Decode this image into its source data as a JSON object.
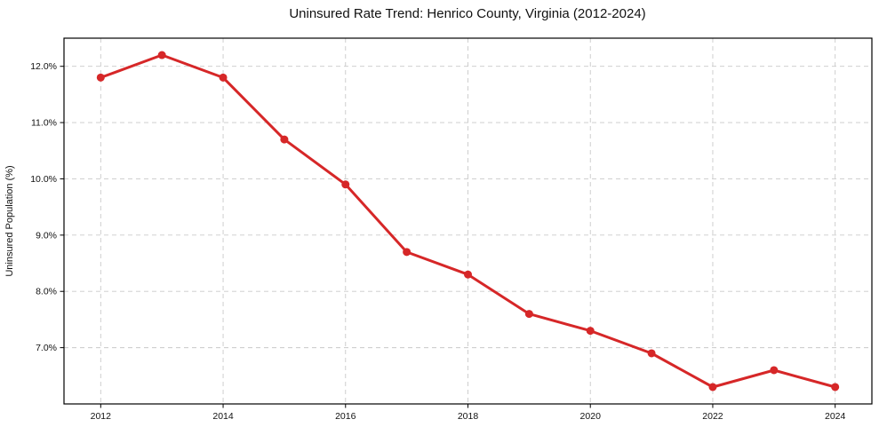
{
  "chart_data": {
    "type": "line",
    "title": "Uninsured Rate Trend: Henrico County, Virginia (2012-2024)",
    "xlabel": "",
    "ylabel": "Uninsured Population (%)",
    "series_name": "uninsured-rate",
    "x": [
      2012,
      2013,
      2014,
      2015,
      2016,
      2017,
      2018,
      2019,
      2020,
      2021,
      2022,
      2023,
      2024
    ],
    "values": [
      11.8,
      12.2,
      11.8,
      10.7,
      9.9,
      8.7,
      8.3,
      7.6,
      7.3,
      6.9,
      6.3,
      6.6,
      6.3
    ],
    "xlim": [
      2011.4,
      2024.6
    ],
    "ylim": [
      6.0,
      12.5
    ],
    "xticks": [
      2012,
      2014,
      2016,
      2018,
      2020,
      2022,
      2024
    ],
    "xtick_labels": [
      "2012",
      "2014",
      "2016",
      "2018",
      "2020",
      "2022",
      "2024"
    ],
    "yticks": [
      7,
      8,
      9,
      10,
      11,
      12
    ],
    "ytick_labels": [
      "7.0%",
      "8.0%",
      "9.0%",
      "10.0%",
      "11.0%",
      "12.0%"
    ],
    "grid": true,
    "legend": "none",
    "colors": {
      "line": "#d62728",
      "marker": "#d62728",
      "grid": "#c9c9c9",
      "frame": "#000000",
      "text": "#111111",
      "background": "#ffffff"
    }
  }
}
